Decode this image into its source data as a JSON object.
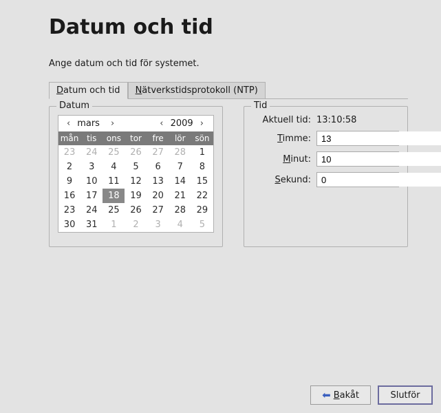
{
  "title": "Datum och tid",
  "description": "Ange datum och tid för systemet.",
  "tabs": [
    {
      "label_pre": "D",
      "label_rest": "atum och tid",
      "active": true
    },
    {
      "label_pre": "N",
      "label_rest": "ätverkstidsprotokoll (NTP)",
      "active": false
    }
  ],
  "datum": {
    "group_title": "Datum",
    "month": "mars",
    "year": "2009",
    "weekdays": [
      "mån",
      "tis",
      "ons",
      "tor",
      "fre",
      "lör",
      "sön"
    ],
    "rows": [
      [
        {
          "d": "23",
          "o": true
        },
        {
          "d": "24",
          "o": true
        },
        {
          "d": "25",
          "o": true
        },
        {
          "d": "26",
          "o": true
        },
        {
          "d": "27",
          "o": true
        },
        {
          "d": "28",
          "o": true
        },
        {
          "d": "1"
        }
      ],
      [
        {
          "d": "2"
        },
        {
          "d": "3"
        },
        {
          "d": "4"
        },
        {
          "d": "5"
        },
        {
          "d": "6"
        },
        {
          "d": "7"
        },
        {
          "d": "8"
        }
      ],
      [
        {
          "d": "9"
        },
        {
          "d": "10"
        },
        {
          "d": "11"
        },
        {
          "d": "12"
        },
        {
          "d": "13"
        },
        {
          "d": "14"
        },
        {
          "d": "15"
        }
      ],
      [
        {
          "d": "16"
        },
        {
          "d": "17"
        },
        {
          "d": "18",
          "sel": true
        },
        {
          "d": "19"
        },
        {
          "d": "20"
        },
        {
          "d": "21"
        },
        {
          "d": "22"
        }
      ],
      [
        {
          "d": "23"
        },
        {
          "d": "24"
        },
        {
          "d": "25"
        },
        {
          "d": "26"
        },
        {
          "d": "27"
        },
        {
          "d": "28"
        },
        {
          "d": "29"
        }
      ],
      [
        {
          "d": "30"
        },
        {
          "d": "31"
        },
        {
          "d": "1",
          "o": true
        },
        {
          "d": "2",
          "o": true
        },
        {
          "d": "3",
          "o": true
        },
        {
          "d": "4",
          "o": true
        },
        {
          "d": "5",
          "o": true
        }
      ]
    ],
    "nav": {
      "prev_month": "‹",
      "next_month": "›",
      "prev_year": "‹",
      "next_year": "›"
    }
  },
  "tid": {
    "group_title": "Tid",
    "current_label": "Aktuell tid:",
    "current_value": "13:10:58",
    "hour_pre": "T",
    "hour_rest": "imme:",
    "hour_value": "13",
    "minute_pre": "M",
    "minute_rest": "inut:",
    "minute_value": "10",
    "second_pre": "S",
    "second_rest": "ekund:",
    "second_value": "0"
  },
  "buttons": {
    "back_pre": "B",
    "back_rest": "akåt",
    "finish": "Slutför"
  },
  "colors": {
    "window_bg": "#e3e3e3",
    "cal_header_bg": "#7a7a7a",
    "cal_selected_bg": "#888888",
    "primary_border": "#6b6b9e",
    "arrow_blue": "#3a5fbf",
    "other_month_text": "#b0b0b0"
  }
}
